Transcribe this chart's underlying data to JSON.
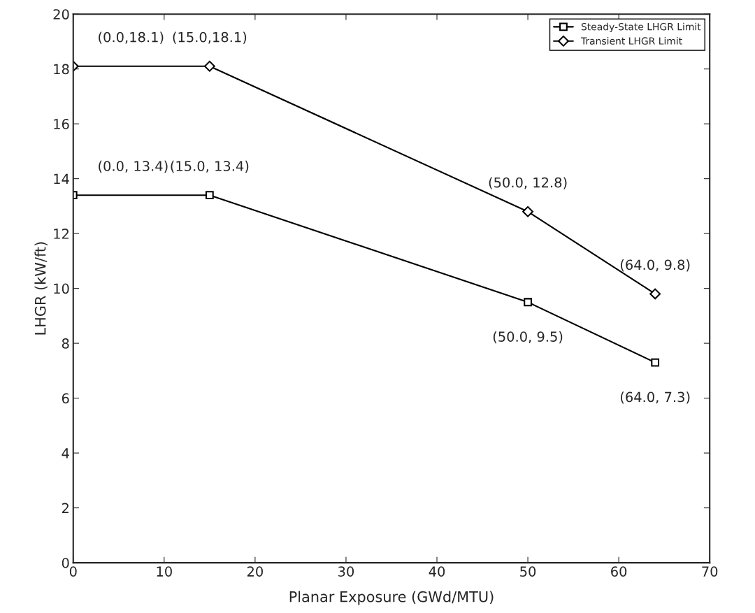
{
  "chart_data": {
    "type": "line",
    "xlabel": "Planar Exposure (GWd/MTU)",
    "ylabel": "LHGR (kW/ft)",
    "series": [
      {
        "name": "Steady-State LHGR Limit",
        "color": "#000000",
        "marker": "square",
        "x": [
          0.0,
          15.0,
          50.0,
          64.0
        ],
        "values": [
          13.4,
          13.4,
          9.5,
          7.3
        ]
      },
      {
        "name": "Transient LHGR Limit",
        "color": "#000000",
        "marker": "diamond",
        "x": [
          0.0,
          15.0,
          50.0,
          64.0
        ],
        "values": [
          18.1,
          18.1,
          12.8,
          9.8
        ]
      }
    ],
    "xlim": [
      0,
      70
    ],
    "xticks": [
      0,
      10,
      20,
      30,
      40,
      50,
      60,
      70
    ],
    "ylim": [
      0,
      20
    ],
    "yticks": [
      0,
      2,
      4,
      6,
      8,
      10,
      12,
      14,
      16,
      18,
      20
    ],
    "grid": false,
    "legend": "top right",
    "line_style": "solid",
    "annotations": [
      {
        "text": "(0.0,18.1)",
        "x": 0.0,
        "y": 18.1
      },
      {
        "text": "(15.0,18.1)",
        "x": 15.0,
        "y": 18.1
      },
      {
        "text": "(0.0, 13.4)",
        "x": 0.0,
        "y": 13.4
      },
      {
        "text": "(15.0, 13.4)",
        "x": 15.0,
        "y": 13.4
      },
      {
        "text": "(50.0, 12.8)",
        "x": 50.0,
        "y": 12.8
      },
      {
        "text": "(64.0, 9.8)",
        "x": 64.0,
        "y": 9.8
      },
      {
        "text": "(50.0, 9.5)",
        "x": 50.0,
        "y": 9.5
      },
      {
        "text": "(64.0, 7.3)",
        "x": 64.0,
        "y": 7.3
      }
    ]
  }
}
